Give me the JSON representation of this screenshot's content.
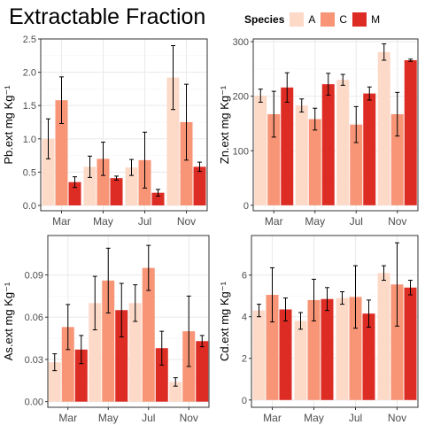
{
  "title": "Extractable Fraction",
  "legend": {
    "title": "Species",
    "items": [
      {
        "label": "A",
        "color": "#fdd9c8"
      },
      {
        "label": "C",
        "color": "#f79576"
      },
      {
        "label": "M",
        "color": "#dd2c24"
      }
    ]
  },
  "chart_data": [
    {
      "type": "bar",
      "ylabel": "Pb.ext mg Kg⁻¹",
      "categories": [
        "Mar",
        "May",
        "Jul",
        "Nov"
      ],
      "ylim": [
        -0.08,
        2.5
      ],
      "yticks": [
        0.0,
        0.5,
        1.0,
        1.5,
        2.0,
        2.5
      ],
      "ytick_labels": [
        "0.0",
        "0.5",
        "1.0",
        "1.5",
        "2.0",
        "2.5"
      ],
      "grid": true,
      "series": [
        {
          "name": "A",
          "values": [
            1.0,
            0.58,
            0.57,
            1.92
          ],
          "err": [
            0.3,
            0.16,
            0.12,
            0.48
          ]
        },
        {
          "name": "C",
          "values": [
            1.58,
            0.7,
            0.68,
            1.25
          ],
          "err": [
            0.35,
            0.25,
            0.42,
            0.57
          ]
        },
        {
          "name": "M",
          "values": [
            0.35,
            0.41,
            0.19,
            0.58
          ],
          "err": [
            0.08,
            0.03,
            0.05,
            0.07
          ]
        }
      ]
    },
    {
      "type": "bar",
      "ylabel": "Zn.ext mg Kg⁻¹",
      "categories": [
        "Mar",
        "May",
        "Jul",
        "Nov"
      ],
      "ylim": [
        -10,
        305
      ],
      "yticks": [
        0,
        100,
        200,
        300
      ],
      "ytick_labels": [
        "0",
        "100",
        "200",
        "300"
      ],
      "grid": true,
      "series": [
        {
          "name": "A",
          "values": [
            201,
            183,
            230,
            281
          ],
          "err": [
            12,
            12,
            10,
            15
          ]
        },
        {
          "name": "C",
          "values": [
            167,
            158,
            148,
            167
          ],
          "err": [
            42,
            20,
            33,
            40
          ]
        },
        {
          "name": "M",
          "values": [
            216,
            222,
            205,
            266
          ],
          "err": [
            27,
            20,
            12,
            2
          ]
        }
      ]
    },
    {
      "type": "bar",
      "ylabel": "As.ext mg Kg⁻¹",
      "categories": [
        "Mar",
        "May",
        "Jul",
        "Nov"
      ],
      "ylim": [
        -0.004,
        0.118
      ],
      "yticks": [
        0.0,
        0.03,
        0.06,
        0.09
      ],
      "ytick_labels": [
        "0.00",
        "0.03",
        "0.06",
        "0.09"
      ],
      "grid": true,
      "series": [
        {
          "name": "A",
          "values": [
            0.028,
            0.07,
            0.07,
            0.014
          ],
          "err": [
            0.006,
            0.019,
            0.013,
            0.003
          ]
        },
        {
          "name": "C",
          "values": [
            0.053,
            0.086,
            0.095,
            0.05
          ],
          "err": [
            0.016,
            0.023,
            0.016,
            0.025
          ]
        },
        {
          "name": "M",
          "values": [
            0.037,
            0.065,
            0.038,
            0.043
          ],
          "err": [
            0.01,
            0.019,
            0.012,
            0.004
          ]
        }
      ]
    },
    {
      "type": "bar",
      "ylabel": "Cd.ext mg Kg⁻¹",
      "categories": [
        "Mar",
        "May",
        "Jul",
        "Nov"
      ],
      "ylim": [
        -0.35,
        7.9
      ],
      "yticks": [
        0,
        2,
        4,
        6
      ],
      "ytick_labels": [
        "0",
        "2",
        "4",
        "6"
      ],
      "grid": true,
      "series": [
        {
          "name": "A",
          "values": [
            4.3,
            3.8,
            4.9,
            6.1
          ],
          "err": [
            0.3,
            0.4,
            0.3,
            0.35
          ]
        },
        {
          "name": "C",
          "values": [
            5.05,
            4.8,
            4.95,
            5.55
          ],
          "err": [
            1.3,
            1.0,
            1.5,
            2.0
          ]
        },
        {
          "name": "M",
          "values": [
            4.35,
            4.85,
            4.15,
            5.4
          ],
          "err": [
            0.55,
            0.55,
            0.65,
            0.35
          ]
        }
      ]
    }
  ]
}
